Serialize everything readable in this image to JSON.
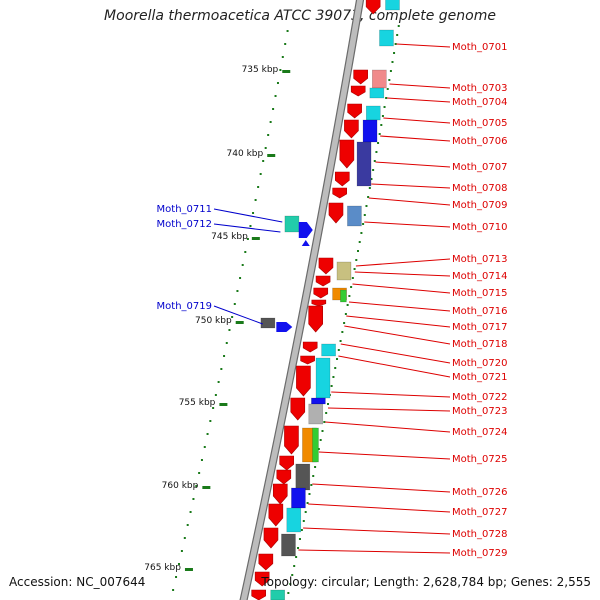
{
  "header": {
    "title": "Moorella thermoacetica ATCC 39073, complete genome"
  },
  "footer": {
    "accession": "Accession: NC_007644",
    "topology": "Topology: circular; Length: 2,628,784 bp; Genes: 2,555"
  },
  "colors": {
    "backbone_fill": "#bdbdbd",
    "backbone_edge": "#6b6b6b",
    "tick": "#1a7a1a",
    "forward_label": "#dd0000",
    "reverse_label": "#0000cc",
    "gene_red": "#ee0000",
    "cog_cyan": "#17d4e0",
    "cog_pink": "#f08a8a",
    "cog_blue": "#1111ee",
    "cog_indigo": "#3a3aa0",
    "cog_steel": "#5a8cc8",
    "cog_gray": "#7a7a7a",
    "cog_olive": "#c8c080",
    "cog_orange": "#f08a00",
    "cog_green": "#33cc33",
    "cog_teal": "#22ccaa",
    "cog_silver": "#b0b0b0",
    "cog_darkgray": "#555555"
  },
  "scale_labels": [
    "735 kbp",
    "740 kbp",
    "745 kbp",
    "750 kbp",
    "755 kbp",
    "760 kbp",
    "765 kbp"
  ],
  "forward_genes": [
    "Moth_0701",
    "Moth_0703",
    "Moth_0704",
    "Moth_0705",
    "Moth_0706",
    "Moth_0707",
    "Moth_0708",
    "Moth_0709",
    "Moth_0710",
    "Moth_0713",
    "Moth_0714",
    "Moth_0715",
    "Moth_0716",
    "Moth_0717",
    "Moth_0718",
    "Moth_0720",
    "Moth_0721",
    "Moth_0722",
    "Moth_0723",
    "Moth_0724",
    "Moth_0725",
    "Moth_0726",
    "Moth_0727",
    "Moth_0728",
    "Moth_0729"
  ],
  "reverse_genes": [
    "Moth_0711",
    "Moth_0712",
    "Moth_0719"
  ]
}
